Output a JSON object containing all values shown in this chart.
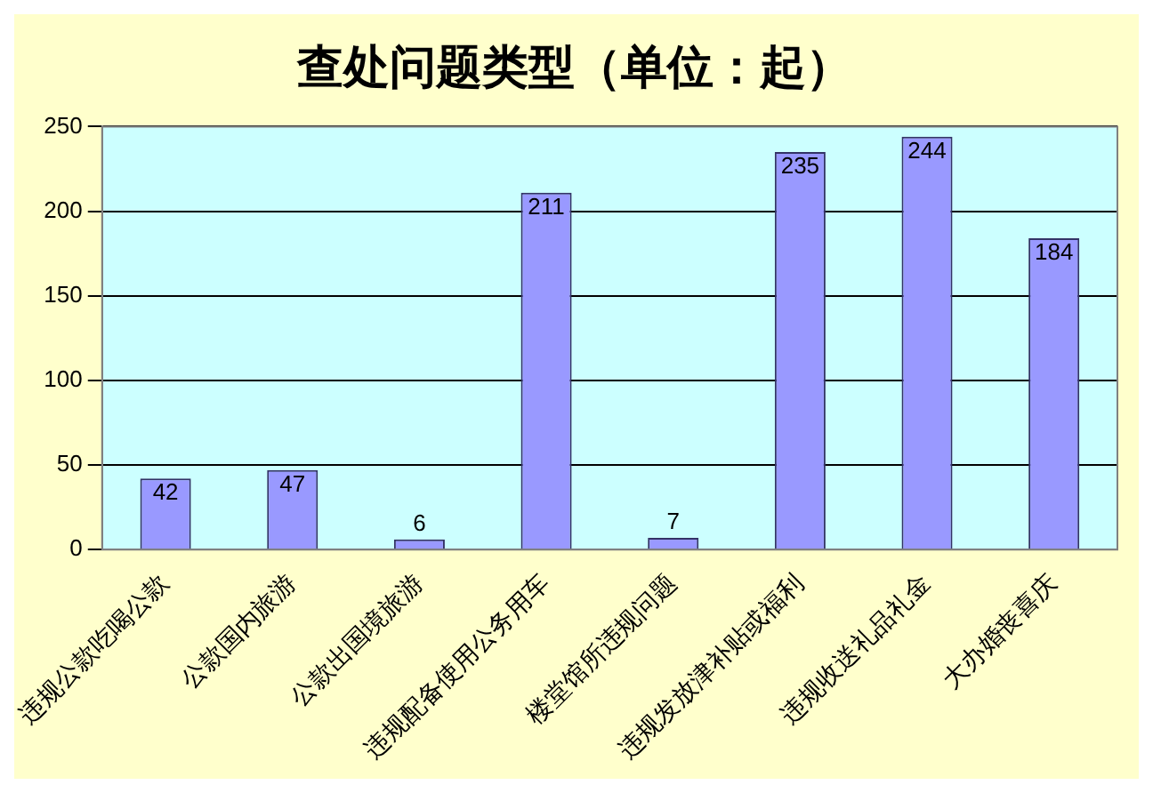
{
  "chart_data": {
    "type": "bar",
    "title": "查处问题类型（单位：起）",
    "categories": [
      "违规公款吃喝公款",
      "公款国内旅游",
      "公款出国境旅游",
      "违规配备使用公务用车",
      "楼堂馆所违规问题",
      "违规发放津补贴或福利",
      "违规收送礼品礼金",
      "大办婚丧喜庆"
    ],
    "values": [
      42,
      47,
      6,
      211,
      7,
      235,
      244,
      184
    ],
    "color": "#9999ff",
    "ylim": [
      0,
      250
    ],
    "yticks": [
      0,
      50,
      100,
      150,
      200,
      250
    ],
    "grid": "y",
    "data_labels": true,
    "legend": false
  }
}
